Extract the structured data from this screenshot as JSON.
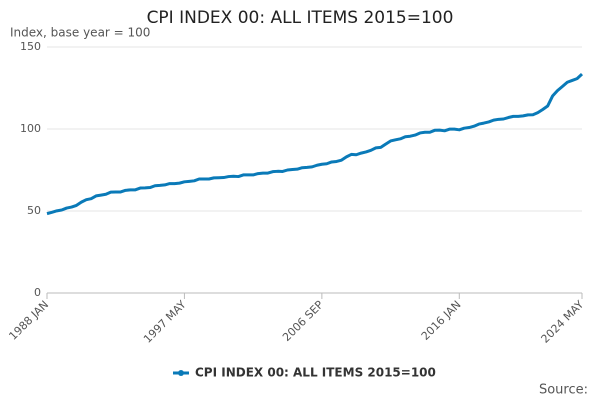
{
  "chart_data": {
    "type": "line",
    "title": "CPI INDEX 00: ALL ITEMS 2015=100",
    "y_label": "Index, base year = 100",
    "source": "Source:",
    "categories": [
      "1988 JAN",
      null,
      null,
      null,
      null,
      null,
      null,
      null,
      null,
      null,
      null,
      null,
      null,
      null,
      null,
      null,
      null,
      null,
      null,
      null,
      null,
      null,
      null,
      null,
      null,
      null,
      null,
      null,
      "1997 MAY",
      null,
      null,
      null,
      null,
      null,
      null,
      null,
      null,
      null,
      null,
      null,
      null,
      null,
      null,
      null,
      null,
      null,
      null,
      null,
      null,
      null,
      null,
      null,
      null,
      null,
      null,
      null,
      "2006 SEP",
      null,
      null,
      null,
      null,
      null,
      null,
      null,
      null,
      null,
      null,
      null,
      null,
      null,
      null,
      null,
      null,
      null,
      null,
      null,
      null,
      null,
      null,
      null,
      null,
      null,
      null,
      null,
      "2016 JAN",
      null,
      null,
      null,
      null,
      null,
      null,
      null,
      null,
      null,
      null,
      null,
      null,
      null,
      null,
      null,
      null,
      null,
      null,
      null,
      null,
      null,
      null,
      null,
      null,
      "2024 MAY"
    ],
    "series": [
      {
        "name": "CPI INDEX 00: ALL ITEMS 2015=100",
        "color": "#0a7ab8",
        "values": [
          48.4,
          49.2,
          50.1,
          50.6,
          51.8,
          52.4,
          53.4,
          55.4,
          56.9,
          57.5,
          59.2,
          59.7,
          60.2,
          61.5,
          61.6,
          61.6,
          62.6,
          62.9,
          62.9,
          64.0,
          64.1,
          64.3,
          65.4,
          65.6,
          65.9,
          66.7,
          66.7,
          67.0,
          67.8,
          68.1,
          68.4,
          69.5,
          69.5,
          69.5,
          70.2,
          70.3,
          70.4,
          71.0,
          71.2,
          71.0,
          72.0,
          72.0,
          72.0,
          72.8,
          73.1,
          73.1,
          74.0,
          74.2,
          74.1,
          75.0,
          75.3,
          75.5,
          76.4,
          76.6,
          76.9,
          77.9,
          78.5,
          78.8,
          79.9,
          80.2,
          81.0,
          83.0,
          84.5,
          84.3,
          85.3,
          86.0,
          87.0,
          88.5,
          88.8,
          90.8,
          92.7,
          93.4,
          94.0,
          95.3,
          95.6,
          96.3,
          97.6,
          98.0,
          98.0,
          99.2,
          99.3,
          98.9,
          99.9,
          99.9,
          99.5,
          100.5,
          100.9,
          101.7,
          103.0,
          103.6,
          104.3,
          105.4,
          105.9,
          106.1,
          107.0,
          107.7,
          107.7,
          108.0,
          108.6,
          108.7,
          110.0,
          111.9,
          114.0,
          120.1,
          123.4,
          125.9,
          128.5,
          129.6,
          130.7,
          133.5
        ]
      }
    ],
    "ylim": [
      0,
      150
    ],
    "yticks": [
      0,
      50,
      100,
      150
    ],
    "grid": true,
    "legend": "bottom"
  }
}
